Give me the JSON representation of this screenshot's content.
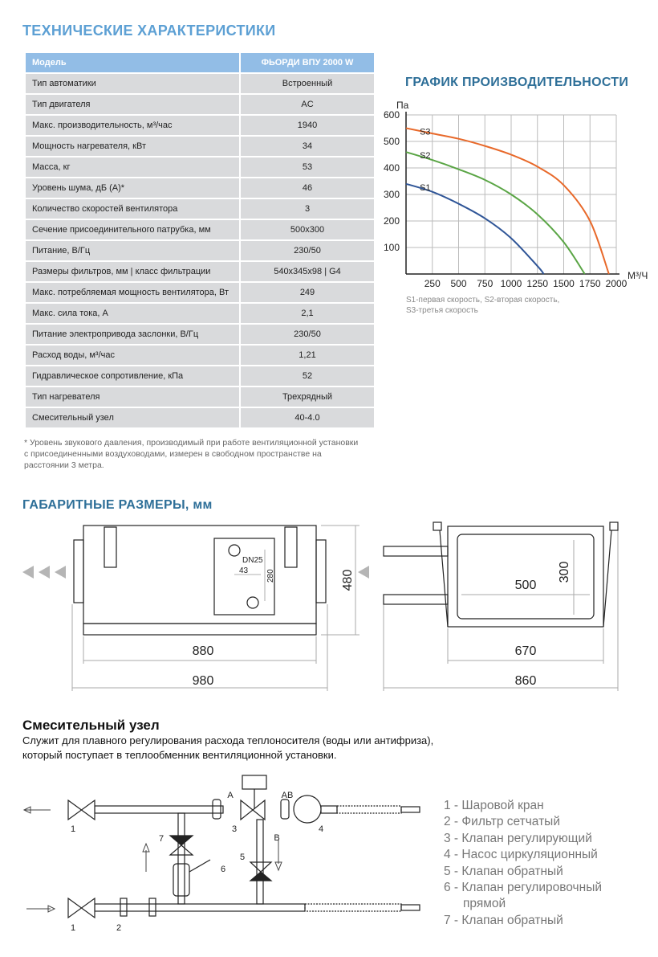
{
  "specs": {
    "title": "ТЕХНИЧЕСКИЕ ХАРАКТЕРИСТИКИ",
    "header": {
      "label": "Модель",
      "value": "ФЬОРДИ ВПУ 2000 W"
    },
    "rows": [
      {
        "label": "Тип автоматики",
        "value": "Встроенный"
      },
      {
        "label": "Тип двигателя",
        "value": "AC"
      },
      {
        "label": "Макс. производительность, м³/час",
        "value": "1940"
      },
      {
        "label": "Мощность нагревателя, кВт",
        "value": "34"
      },
      {
        "label": "Масса, кг",
        "value": "53"
      },
      {
        "label": "Уровень шума, дБ (А)*",
        "value": "46"
      },
      {
        "label": "Количество скоростей вентилятора",
        "value": "3"
      },
      {
        "label": "Сечение присоединительного патрубка, мм",
        "value": "500x300"
      },
      {
        "label": "Питание, В/Гц",
        "value": "230/50"
      },
      {
        "label": "Размеры фильтров, мм  |  класс фильтрации",
        "value": "540x345x98  |  G4"
      },
      {
        "label": "Макс. потребляемая мощность вентилятора, Вт",
        "value": "249"
      },
      {
        "label": "Макс. сила тока, А",
        "value": "2,1"
      },
      {
        "label": "Питание электропривода заслонки, В/Гц",
        "value": "230/50"
      },
      {
        "label": "Расход воды, м³/час",
        "value": "1,21"
      },
      {
        "label": "Гидравлическое сопротивление, кПа",
        "value": "52"
      },
      {
        "label": "Тип нагревателя",
        "value": "Трехрядный"
      },
      {
        "label": "Смесительный узел",
        "value": "40-4.0"
      }
    ],
    "note": "* Уровень звукового давления, производимый при работе вентиляционной установки с присоединенными воздуховодами, измерен в свободном пространстве на расстоянии 3 метра."
  },
  "chart_data": {
    "type": "line",
    "title": "ГРАФИК ПРОИЗВОДИТЕЛЬНОСТИ",
    "xlabel": "М³/Ч",
    "ylabel": "Па",
    "xlim": [
      0,
      2000
    ],
    "ylim": [
      0,
      600
    ],
    "grid": true,
    "xticks": [
      "250",
      "500",
      "750",
      "1000",
      "1250",
      "1500",
      "1750",
      "2000"
    ],
    "yticks": [
      "100",
      "200",
      "300",
      "400",
      "500",
      "600"
    ],
    "series": [
      {
        "name": "S1",
        "color": "#2f5597",
        "x": [
          0,
          250,
          500,
          750,
          1000,
          1250,
          1310
        ],
        "y": [
          340,
          310,
          265,
          210,
          135,
          30,
          0
        ]
      },
      {
        "name": "S2",
        "color": "#5aa545",
        "x": [
          0,
          250,
          500,
          750,
          1000,
          1250,
          1500,
          1700
        ],
        "y": [
          460,
          430,
          395,
          355,
          300,
          225,
          120,
          0
        ]
      },
      {
        "name": "S3",
        "color": "#e8692a",
        "x": [
          0,
          250,
          500,
          750,
          1000,
          1250,
          1500,
          1750,
          1930
        ],
        "y": [
          550,
          530,
          510,
          483,
          450,
          405,
          335,
          200,
          0
        ]
      }
    ],
    "legend_note": [
      "S1-первая скорость, S2-вторая скорость,",
      "S3-третья скорость"
    ]
  },
  "dimensions": {
    "title": "ГАБАРИТНЫЕ РАЗМЕРЫ, мм",
    "front": {
      "width_inner": "880",
      "width_outer": "980",
      "height": "480",
      "pipe_dn": "DN25",
      "pipe_offset": "43",
      "pipe_spacing": "280"
    },
    "side": {
      "width_inner": "670",
      "width_outer": "860",
      "duct_w": "500",
      "duct_h": "300"
    }
  },
  "mixing": {
    "title": "Смесительный узел",
    "description": [
      "Служит для плавного регулирования расхода теплоносителя (воды или антифриза),",
      "который поступает в теплообменник вентиляционной установки."
    ],
    "ports": {
      "a": "A",
      "ab": "AB",
      "b": "B"
    },
    "callouts": [
      "1",
      "1",
      "2",
      "3",
      "4",
      "5",
      "6",
      "7"
    ],
    "legend": [
      "1 - Шаровой кран",
      "2 - Фильтр сетчатый",
      "3 - Клапан регулирующий",
      "4 - Насос циркуляционный",
      "5 - Клапан обратный",
      "6 - Клапан регулировочный",
      "прямой",
      "7 - Клапан обратный"
    ]
  }
}
